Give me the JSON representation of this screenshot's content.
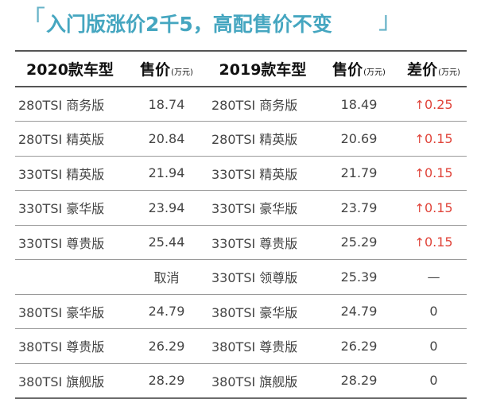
{
  "title": {
    "open_bracket": "「",
    "text": "入门版涨价2千5，高配售价不变",
    "close_bracket": "」"
  },
  "colors": {
    "title": "#45a6c0",
    "bracket": "#67b3c8",
    "increase": "#e0443a"
  },
  "table": {
    "headers": [
      {
        "label": "2020款车型",
        "unit": ""
      },
      {
        "label": "售价",
        "unit": "(万元)"
      },
      {
        "label": "2019款车型",
        "unit": ""
      },
      {
        "label": "售价",
        "unit": "(万元)"
      },
      {
        "label": "差价",
        "unit": "(万元)"
      }
    ],
    "rows": [
      {
        "model_2020": "280TSI 商务版",
        "price_2020": "18.74",
        "model_2019": "280TSI 商务版",
        "price_2019": "18.49",
        "diff_arrow": "↑",
        "diff": "0.25",
        "increase": true
      },
      {
        "model_2020": "280TSI 精英版",
        "price_2020": "20.84",
        "model_2019": "280TSI 精英版",
        "price_2019": "20.69",
        "diff_arrow": "↑",
        "diff": "0.15",
        "increase": true
      },
      {
        "model_2020": "330TSI 精英版",
        "price_2020": "21.94",
        "model_2019": "330TSI 精英版",
        "price_2019": "21.79",
        "diff_arrow": "↑",
        "diff": "0.15",
        "increase": true
      },
      {
        "model_2020": "330TSI 豪华版",
        "price_2020": "23.94",
        "model_2019": "330TSI 豪华版",
        "price_2019": "23.79",
        "diff_arrow": "↑",
        "diff": "0.15",
        "increase": true
      },
      {
        "model_2020": "330TSI 尊贵版",
        "price_2020": "25.44",
        "model_2019": "330TSI 尊贵版",
        "price_2019": "25.29",
        "diff_arrow": "↑",
        "diff": "0.15",
        "increase": true
      },
      {
        "model_2020": "",
        "price_2020": "取消",
        "model_2019": "330TSI 领尊版",
        "price_2019": "25.39",
        "diff_arrow": "",
        "diff": "—",
        "increase": false
      },
      {
        "model_2020": "380TSI 豪华版",
        "price_2020": "24.79",
        "model_2019": "380TSI 豪华版",
        "price_2019": "24.79",
        "diff_arrow": "",
        "diff": "0",
        "increase": false
      },
      {
        "model_2020": "380TSI 尊贵版",
        "price_2020": "26.29",
        "model_2019": "380TSI 尊贵版",
        "price_2019": "26.29",
        "diff_arrow": "",
        "diff": "0",
        "increase": false
      },
      {
        "model_2020": "380TSI 旗舰版",
        "price_2020": "28.29",
        "model_2019": "380TSI 旗舰版",
        "price_2019": "28.29",
        "diff_arrow": "",
        "diff": "0",
        "increase": false
      }
    ]
  }
}
